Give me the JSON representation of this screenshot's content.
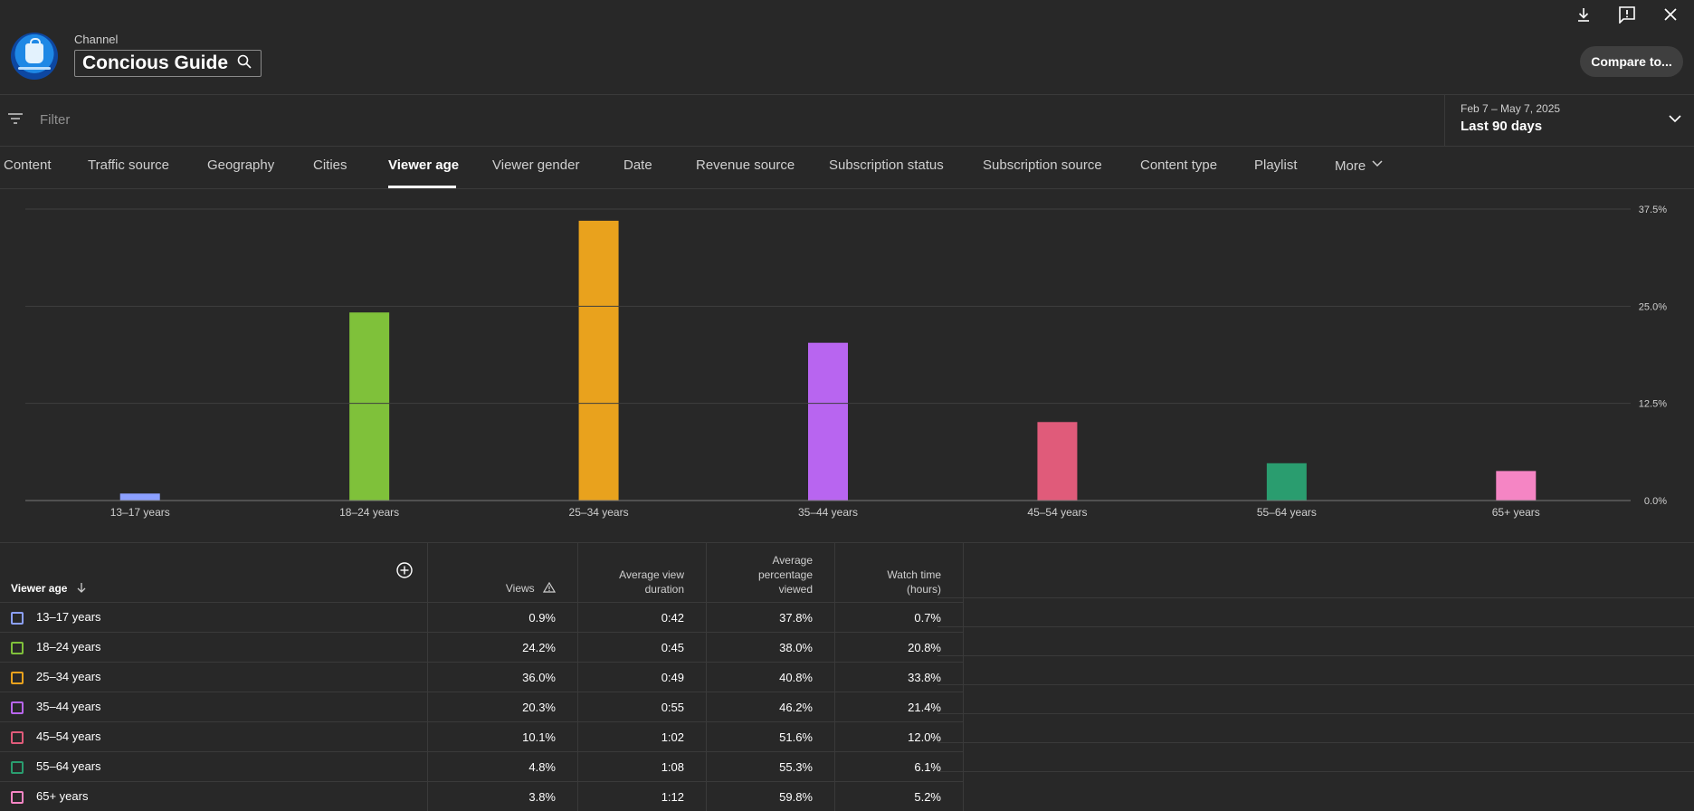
{
  "header": {
    "channel_label": "Channel",
    "channel_name": "Concious Guide",
    "compare_label": "Compare to..."
  },
  "filter": {
    "placeholder": "Filter"
  },
  "date": {
    "range": "Feb 7 – May 7, 2025",
    "preset": "Last 90 days"
  },
  "tabs": [
    {
      "label": "Content"
    },
    {
      "label": "Traffic source"
    },
    {
      "label": "Geography"
    },
    {
      "label": "Cities"
    },
    {
      "label": "Viewer age"
    },
    {
      "label": "Viewer gender"
    },
    {
      "label": "Date"
    },
    {
      "label": "Revenue source"
    },
    {
      "label": "Subscription status"
    },
    {
      "label": "Subscription source"
    },
    {
      "label": "Content type"
    },
    {
      "label": "Playlist"
    },
    {
      "label": "More"
    }
  ],
  "active_tab": "Viewer age",
  "chart_data": {
    "type": "bar",
    "categories": [
      "13–17 years",
      "18–24 years",
      "25–34 years",
      "35–44 years",
      "45–54 years",
      "55–64 years",
      "65+ years"
    ],
    "values": [
      0.9,
      24.2,
      36.0,
      20.3,
      10.1,
      4.8,
      3.8
    ],
    "colors": [
      "#8ca0ff",
      "#7fc13a",
      "#e9a21d",
      "#b865f0",
      "#e05b7a",
      "#2a9d6f",
      "#f585c4"
    ],
    "ylim": [
      0,
      37.5
    ],
    "yticks": [
      "0.0%",
      "12.5%",
      "25.0%",
      "37.5%"
    ],
    "ytick_values": [
      0,
      12.5,
      25,
      37.5
    ],
    "grid": true
  },
  "table": {
    "headers": [
      "Viewer age",
      "Views",
      "Average view duration",
      "Average percentage viewed",
      "Watch time (hours)"
    ],
    "rows": [
      {
        "age": "13–17 years",
        "views": "0.9%",
        "avd": "0:42",
        "apv": "37.8%",
        "wt": "0.7%"
      },
      {
        "age": "18–24 years",
        "views": "24.2%",
        "avd": "0:45",
        "apv": "38.0%",
        "wt": "20.8%"
      },
      {
        "age": "25–34 years",
        "views": "36.0%",
        "avd": "0:49",
        "apv": "40.8%",
        "wt": "33.8%"
      },
      {
        "age": "35–44 years",
        "views": "20.3%",
        "avd": "0:55",
        "apv": "46.2%",
        "wt": "21.4%"
      },
      {
        "age": "45–54 years",
        "views": "10.1%",
        "avd": "1:02",
        "apv": "51.6%",
        "wt": "12.0%"
      },
      {
        "age": "55–64 years",
        "views": "4.8%",
        "avd": "1:08",
        "apv": "55.3%",
        "wt": "6.1%"
      },
      {
        "age": "65+ years",
        "views": "3.8%",
        "avd": "1:12",
        "apv": "59.8%",
        "wt": "5.2%"
      }
    ]
  },
  "icons": [
    "download-icon",
    "feedback-icon",
    "close-icon",
    "search-icon",
    "filter-icon",
    "chevron-down-icon",
    "add-column-icon",
    "sort-down-icon",
    "warning-icon"
  ]
}
